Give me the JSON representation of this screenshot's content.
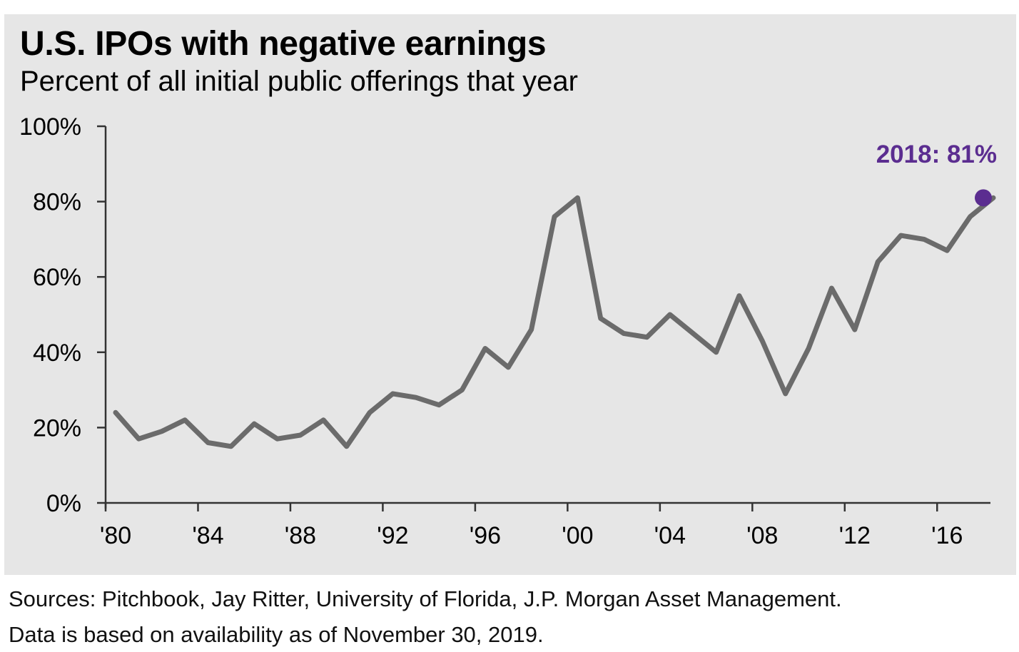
{
  "title": "U.S. IPOs with negative earnings",
  "subtitle": "Percent of all initial public offerings that year",
  "sources": "Sources: Pitchbook, Jay Ritter, University of Florida, J.P. Morgan Asset Management.",
  "data_note": "Data is based on availability as of November 30, 2019.",
  "colors": {
    "background": "#e6e6e6",
    "line": "#6b6b6b",
    "highlight": "#5b2d90",
    "axis": "#333333"
  },
  "chart_data": {
    "type": "line",
    "title": "U.S. IPOs with negative earnings",
    "subtitle": "Percent of all initial public offerings that year",
    "xlabel": "",
    "ylabel": "",
    "xlim": [
      1980,
      2018
    ],
    "ylim": [
      0,
      100
    ],
    "grid": false,
    "x_ticks": [
      1980,
      1984,
      1988,
      1992,
      1996,
      2000,
      2004,
      2008,
      2012,
      2016
    ],
    "x_tick_labels": [
      "'80",
      "'84",
      "'88",
      "'92",
      "'96",
      "'00",
      "'04",
      "'08",
      "'12",
      "'16"
    ],
    "y_ticks": [
      0,
      20,
      40,
      60,
      80,
      100
    ],
    "y_tick_labels": [
      "0%",
      "20%",
      "40%",
      "60%",
      "80%",
      "100%"
    ],
    "x": [
      1980,
      1981,
      1982,
      1983,
      1984,
      1985,
      1986,
      1987,
      1988,
      1989,
      1990,
      1991,
      1992,
      1993,
      1994,
      1995,
      1996,
      1997,
      1998,
      1999,
      2000,
      2001,
      2002,
      2003,
      2004,
      2005,
      2006,
      2007,
      2008,
      2009,
      2010,
      2011,
      2012,
      2013,
      2014,
      2015,
      2016,
      2017,
      2018
    ],
    "series": [
      {
        "values": [
          24,
          17,
          19,
          22,
          16,
          15,
          21,
          17,
          18,
          22,
          15,
          24,
          29,
          28,
          26,
          30,
          41,
          36,
          46,
          76,
          81,
          49,
          45,
          44,
          50,
          45,
          40,
          55,
          43,
          29,
          41,
          57,
          46,
          64,
          71,
          70,
          67,
          76,
          81
        ]
      }
    ],
    "annotations": [
      {
        "x": 2018,
        "y": 81,
        "text": "2018: 81%"
      }
    ]
  }
}
